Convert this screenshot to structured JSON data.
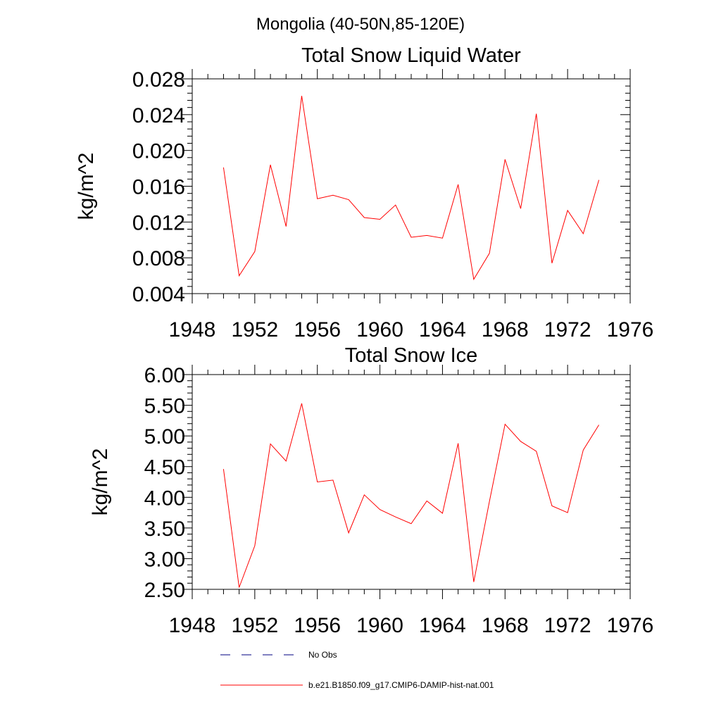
{
  "figure": {
    "suptitle": "Mongolia (40-50N,85-120E)"
  },
  "legend": {
    "items": [
      {
        "label": "No Obs",
        "color": "#000080",
        "style": "dashed"
      },
      {
        "label": "b.e21.B1850.f09_g17.CMIP6-DAMIP-hist-nat.001",
        "color": "#ff0000",
        "style": "solid"
      }
    ]
  },
  "chart_data": [
    {
      "type": "line",
      "title": "Total Snow Liquid Water",
      "xlabel": "",
      "ylabel": "kg/m^2",
      "xlim": [
        1948,
        1976
      ],
      "ylim": [
        0.004,
        0.028
      ],
      "xticks": [
        1948,
        1952,
        1956,
        1960,
        1964,
        1968,
        1972,
        1976
      ],
      "xtick_labels": [
        "1948",
        "1952",
        "1956",
        "1960",
        "1964",
        "1968",
        "1972",
        "1976"
      ],
      "yticks": [
        0.004,
        0.008,
        0.012,
        0.016,
        0.02,
        0.024,
        0.028
      ],
      "ytick_labels": [
        "0.004",
        "0.008",
        "0.012",
        "0.016",
        "0.020",
        "0.024",
        "0.028"
      ],
      "grid": false,
      "series": [
        {
          "name": "b.e21.B1850.f09_g17.CMIP6-DAMIP-hist-nat.001",
          "color": "#ff0000",
          "x": [
            1950,
            1951,
            1952,
            1953,
            1954,
            1955,
            1956,
            1957,
            1958,
            1959,
            1960,
            1961,
            1962,
            1963,
            1964,
            1965,
            1966,
            1967,
            1968,
            1969,
            1970,
            1971,
            1972,
            1973,
            1974
          ],
          "values": [
            0.0181,
            0.006,
            0.0087,
            0.0184,
            0.0115,
            0.0261,
            0.0146,
            0.015,
            0.0145,
            0.0125,
            0.0123,
            0.0139,
            0.0103,
            0.0105,
            0.0102,
            0.0162,
            0.0056,
            0.0085,
            0.019,
            0.0135,
            0.0241,
            0.0074,
            0.0133,
            0.0107,
            0.0167
          ]
        }
      ]
    },
    {
      "type": "line",
      "title": "Total Snow Ice",
      "xlabel": "",
      "ylabel": "kg/m^2",
      "xlim": [
        1948,
        1976
      ],
      "ylim": [
        2.5,
        6.0
      ],
      "xticks": [
        1948,
        1952,
        1956,
        1960,
        1964,
        1968,
        1972,
        1976
      ],
      "xtick_labels": [
        "1948",
        "1952",
        "1956",
        "1960",
        "1964",
        "1968",
        "1972",
        "1976"
      ],
      "yticks": [
        2.5,
        3.0,
        3.5,
        4.0,
        4.5,
        5.0,
        5.5,
        6.0
      ],
      "ytick_labels": [
        "2.50",
        "3.00",
        "3.50",
        "4.00",
        "4.50",
        "5.00",
        "5.50",
        "6.00"
      ],
      "grid": false,
      "series": [
        {
          "name": "b.e21.B1850.f09_g17.CMIP6-DAMIP-hist-nat.001",
          "color": "#ff0000",
          "x": [
            1950,
            1951,
            1952,
            1953,
            1954,
            1955,
            1956,
            1957,
            1958,
            1959,
            1960,
            1961,
            1962,
            1963,
            1964,
            1965,
            1966,
            1967,
            1968,
            1969,
            1970,
            1971,
            1972,
            1973,
            1974
          ],
          "values": [
            4.46,
            2.53,
            3.21,
            4.87,
            4.59,
            5.53,
            4.25,
            4.28,
            3.42,
            4.04,
            3.8,
            3.68,
            3.57,
            3.94,
            3.74,
            4.88,
            2.62,
            3.93,
            5.19,
            4.91,
            4.75,
            3.86,
            3.75,
            4.77,
            5.18
          ]
        }
      ]
    }
  ]
}
